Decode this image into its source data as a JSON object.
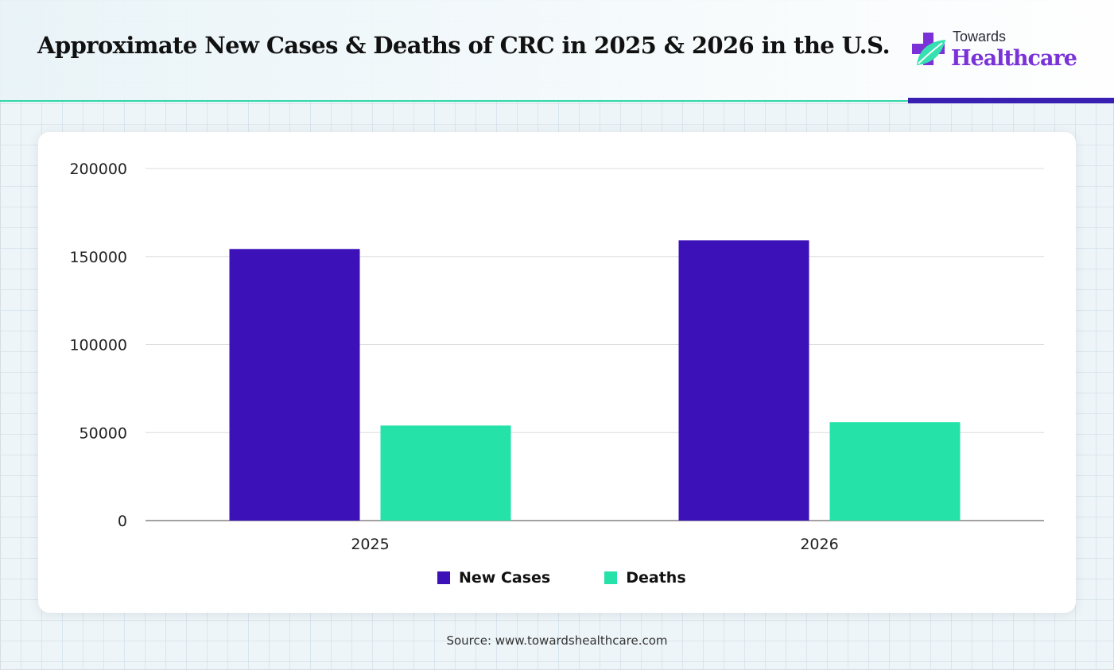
{
  "header": {
    "title": "Approximate New Cases & Deaths of CRC in 2025 & 2026 in the U.S.",
    "logo_top": "Towards",
    "logo_main": "Healthcare"
  },
  "colors": {
    "new_cases": "#3c11b8",
    "deaths": "#24e2a8",
    "accent_teal": "#2fd8a8",
    "accent_purple": "#3a1fb3"
  },
  "chart_data": {
    "type": "bar",
    "categories": [
      "2025",
      "2026"
    ],
    "series": [
      {
        "name": "New Cases",
        "values": [
          154270,
          159200
        ],
        "color": "#3c11b8"
      },
      {
        "name": "Deaths",
        "values": [
          54000,
          55900
        ],
        "color": "#24e2a8"
      }
    ],
    "ylim": [
      0,
      200000
    ],
    "yticks": [
      "0",
      "50000",
      "100000",
      "150000",
      "200000"
    ],
    "grid": true,
    "legend_position": "bottom-center"
  },
  "footer": {
    "source": "Source: www.towardshealthcare.com"
  }
}
